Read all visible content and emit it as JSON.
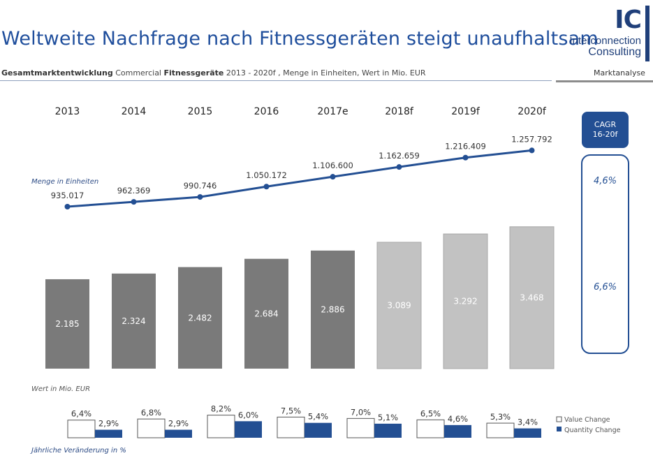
{
  "header": {
    "title": "Weltweite Nachfrage nach Fitnessgeräten steigt unaufhaltsam",
    "subtitle_bold1": "Gesamtmarktentwicklung",
    "subtitle_plain1": " Commercial ",
    "subtitle_bold2": "Fitnessgeräte",
    "subtitle_plain2": " 2013 - 2020f , Menge in Einheiten, Wert in Mio. EUR",
    "section_label": "Marktanalyse"
  },
  "logo": {
    "mark": "IC",
    "line1": "Interconnection",
    "line2": "Consulting"
  },
  "colors": {
    "title": "#1f4e9c",
    "bar_actual": "#7a7a7a",
    "bar_forecast": "#c2c2c2",
    "line": "#234f93",
    "quantity_change": "#234f93"
  },
  "chart_data": [
    {
      "type": "bar",
      "categories": [
        "2013",
        "2014",
        "2015",
        "2016",
        "2017e",
        "2018f",
        "2019f",
        "2020f"
      ],
      "series": [
        {
          "name": "Wert in Mio. EUR",
          "values": [
            2185,
            2324,
            2482,
            2684,
            2886,
            3089,
            3292,
            3468
          ],
          "labels": [
            "2.185",
            "2.324",
            "2.482",
            "2.684",
            "2.886",
            "3.089",
            "3.292",
            "3.468"
          ],
          "forecast_from_index": 5
        },
        {
          "name": "Menge in Einheiten",
          "type": "line",
          "values": [
            935017,
            962369,
            990746,
            1050172,
            1106600,
            1162659,
            1216409,
            1257792
          ],
          "labels": [
            "935.017",
            "962.369",
            "990.746",
            "1.050.172",
            "1.106.600",
            "1.162.659",
            "1.216.409",
            "1.257.792"
          ]
        }
      ],
      "value_axis_label": "Wert in Mio. EUR",
      "quantity_axis_label": "Menge in Einheiten",
      "cagr": {
        "title_line1": "CAGR",
        "title_line2": "16-20f",
        "quantity": "4,6%",
        "value": "6,6%"
      }
    },
    {
      "type": "bar",
      "title": "Jährliche Veränderung in %",
      "series": [
        {
          "name": "Value Change",
          "values": [
            6.4,
            6.8,
            8.2,
            7.5,
            7.0,
            6.5,
            5.3
          ],
          "labels": [
            "6,4%",
            "6,8%",
            "8,2%",
            "7,5%",
            "7,0%",
            "6,5%",
            "5,3%"
          ]
        },
        {
          "name": "Quantity Change",
          "values": [
            2.9,
            2.9,
            6.0,
            5.4,
            5.1,
            4.6,
            3.4
          ],
          "labels": [
            "2,9%",
            "2,9%",
            "6,0%",
            "5,4%",
            "5,1%",
            "4,6%",
            "3,4%"
          ]
        }
      ]
    }
  ]
}
